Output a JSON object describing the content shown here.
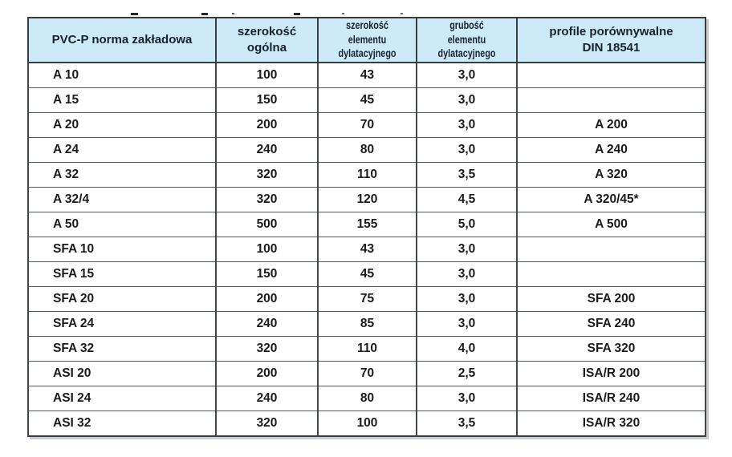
{
  "colors": {
    "header_background": "#cdeaf9",
    "header_text": "#17222e",
    "cell_text": "#1b1b1d",
    "border_dark": "#383d42",
    "border_inner": "#54585d"
  },
  "table": {
    "headers": [
      "PVC-P norma zakładowa",
      "szerokość\nogólna",
      "szerokość\nelementu dylatacyjnego",
      "grubość\nelementu dylatacyjnego",
      "profile porównywalne\nDIN 18541"
    ],
    "rows": [
      {
        "cells": [
          "A 10",
          "100",
          "43",
          "3,0",
          ""
        ]
      },
      {
        "cells": [
          "A 15",
          "150",
          "45",
          "3,0",
          ""
        ]
      },
      {
        "cells": [
          "A 20",
          "200",
          "70",
          "3,0",
          "A 200"
        ]
      },
      {
        "cells": [
          "A 24",
          "240",
          "80",
          "3,0",
          "A 240"
        ]
      },
      {
        "cells": [
          "A 32",
          "320",
          "110",
          "3,5",
          "A 320"
        ]
      },
      {
        "cells": [
          "A 32/4",
          "320",
          "120",
          "4,5",
          "A 320/45*"
        ]
      },
      {
        "cells": [
          "A 50",
          "500",
          "155",
          "5,0",
          "A 500"
        ]
      },
      {
        "cells": [
          "SFA 10",
          "100",
          "43",
          "3,0",
          ""
        ]
      },
      {
        "cells": [
          "SFA 15",
          "150",
          "45",
          "3,0",
          ""
        ]
      },
      {
        "cells": [
          "SFA 20",
          "200",
          "75",
          "3,0",
          "SFA 200"
        ]
      },
      {
        "cells": [
          "SFA 24",
          "240",
          "85",
          "3,0",
          "SFA 240"
        ]
      },
      {
        "cells": [
          "SFA 32",
          "320",
          "110",
          "4,0",
          "SFA 320"
        ]
      },
      {
        "cells": [
          "ASI 20",
          "200",
          "70",
          "2,5",
          "ISA/R 200"
        ]
      },
      {
        "cells": [
          "ASI 24",
          "240",
          "80",
          "3,0",
          "ISA/R 240"
        ]
      },
      {
        "cells": [
          "ASI 32",
          "320",
          "100",
          "3,5",
          "ISA/R 320"
        ]
      }
    ]
  }
}
